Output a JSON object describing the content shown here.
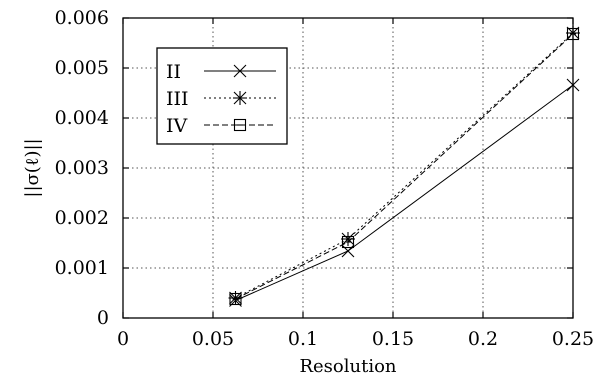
{
  "chart_data": {
    "type": "line",
    "xlabel": "Resolution",
    "ylabel": "||σ(ℓ)||",
    "xlim": [
      0,
      0.25
    ],
    "ylim": [
      0,
      0.006
    ],
    "xticks": [
      "0",
      "0.05",
      "0.1",
      "0.15",
      "0.2",
      "0.25"
    ],
    "yticks": [
      "0",
      "0.001",
      "0.002",
      "0.003",
      "0.004",
      "0.005",
      "0.006"
    ],
    "grid": true,
    "legend_placement": "top-left",
    "series": [
      {
        "name": "II",
        "marker": "x",
        "line": "solid",
        "x": [
          0.0625,
          0.125,
          0.25
        ],
        "y": [
          0.00035,
          0.00134,
          0.00466
        ]
      },
      {
        "name": "III",
        "marker": "star",
        "line": "dotted",
        "x": [
          0.0625,
          0.125,
          0.25
        ],
        "y": [
          0.0004,
          0.00158,
          0.0057
        ]
      },
      {
        "name": "IV",
        "marker": "square",
        "line": "dashed",
        "x": [
          0.0625,
          0.125,
          0.25
        ],
        "y": [
          0.00038,
          0.00152,
          0.00568
        ]
      }
    ]
  }
}
